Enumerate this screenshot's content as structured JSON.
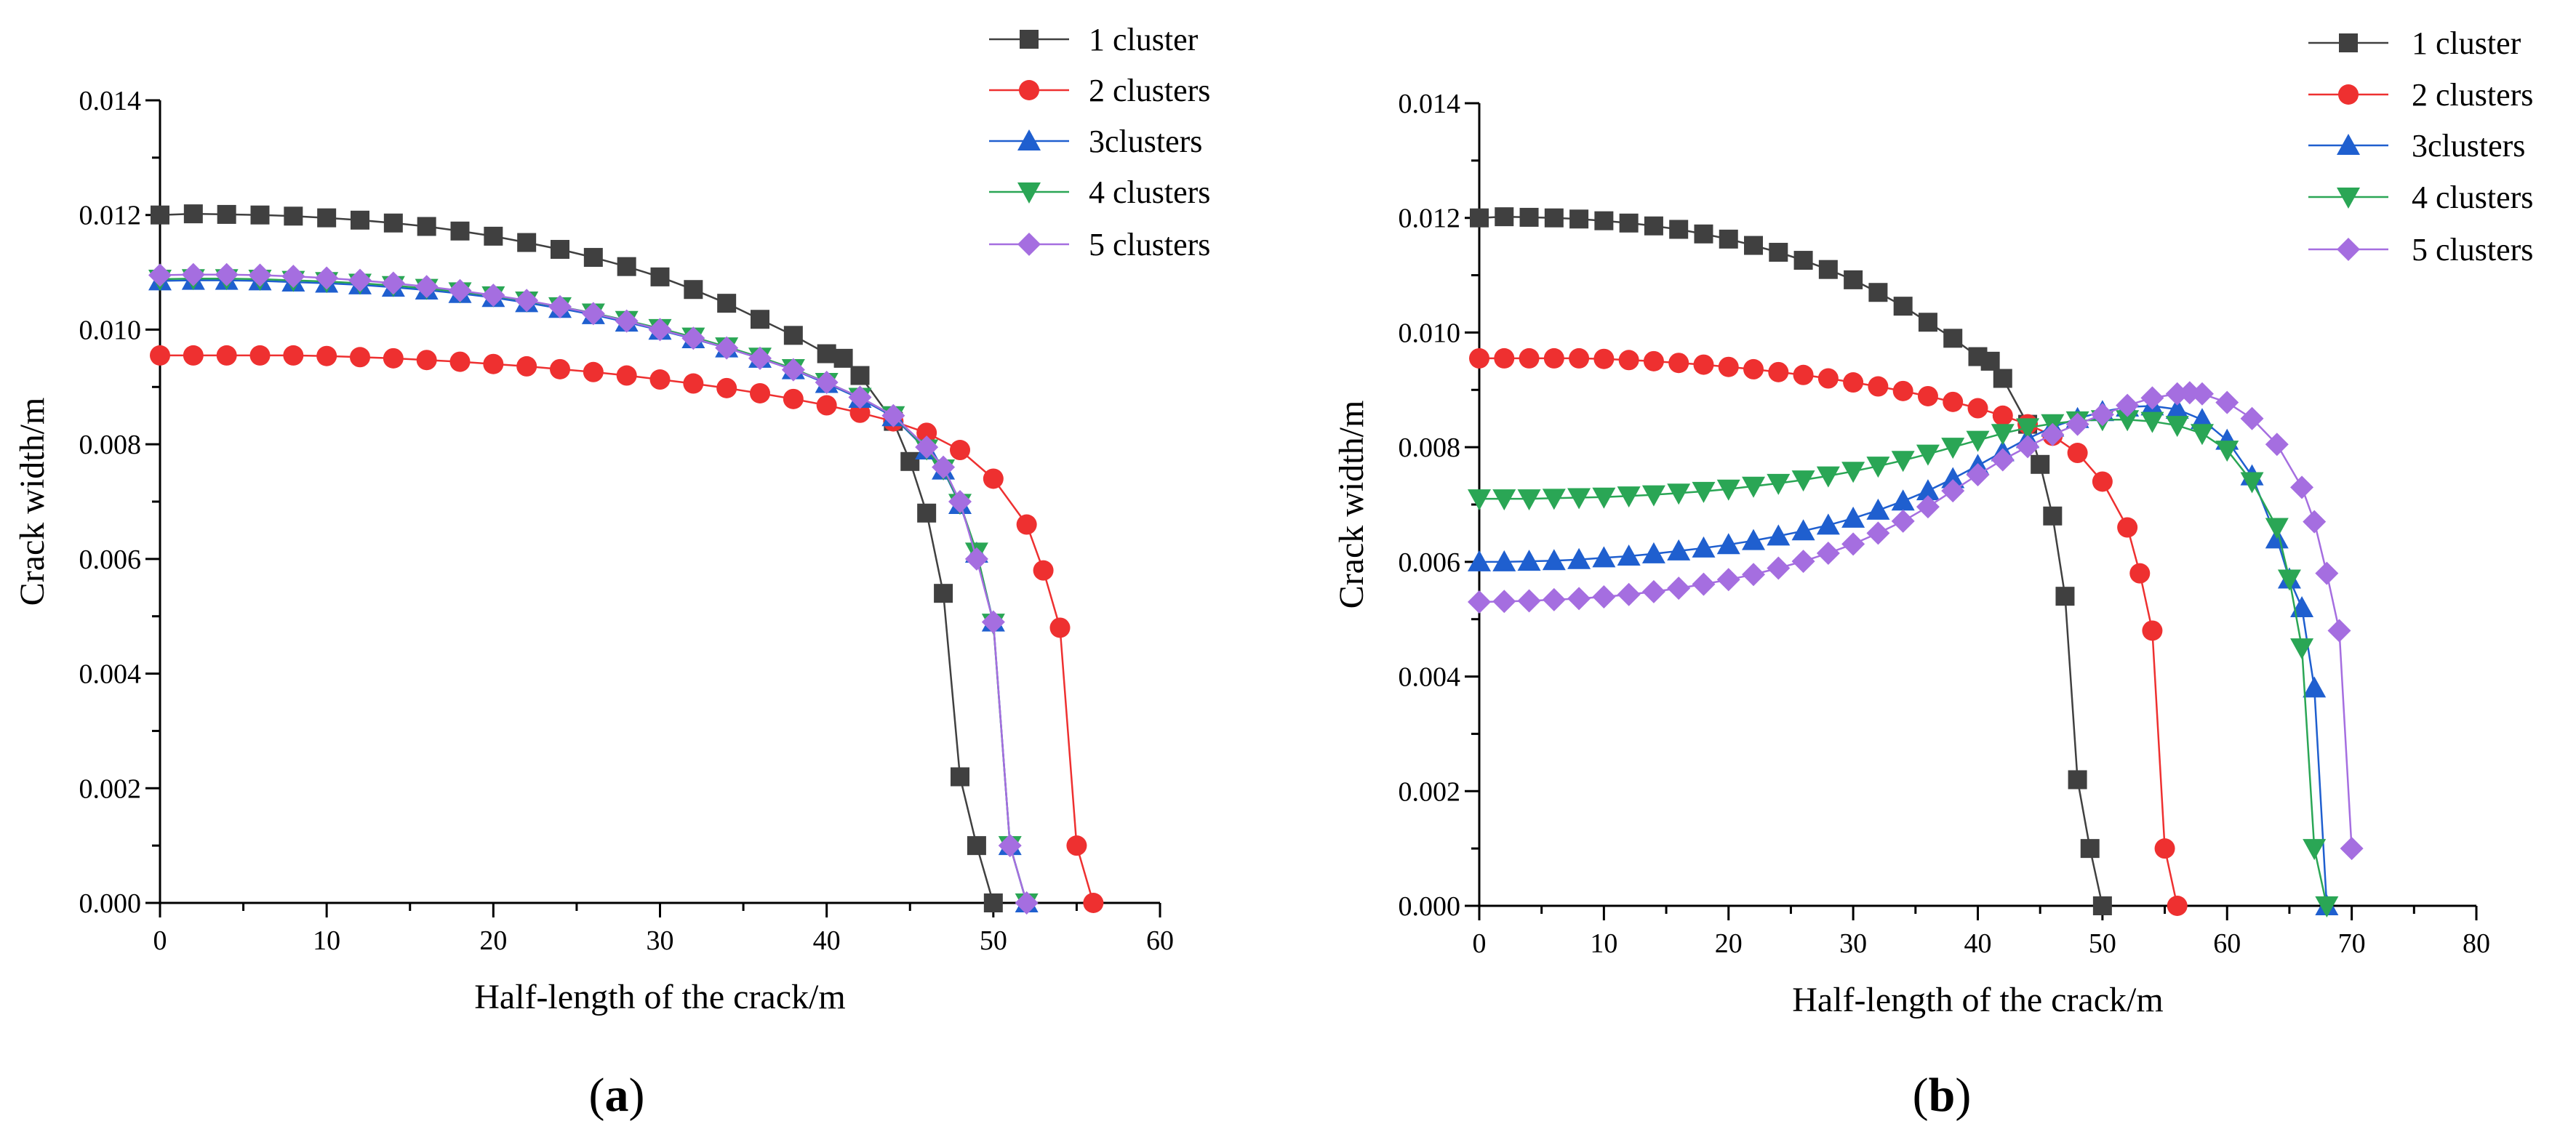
{
  "figure": {
    "panels": [
      {
        "label_open": "(",
        "label_letter": "a",
        "label_close": ")",
        "chart": {
          "type": "line",
          "title": "",
          "xlabel": "Half-length of the crack/m",
          "ylabel": "Crack width/m",
          "xlim": [
            0,
            60
          ],
          "ylim": [
            0,
            0.014
          ],
          "xticks": [
            0,
            10,
            20,
            30,
            40,
            50,
            60
          ],
          "yticks": [
            0.0,
            0.002,
            0.004,
            0.006,
            0.008,
            0.01,
            0.012,
            0.014
          ],
          "xtick_labels": [
            "0",
            "10",
            "20",
            "30",
            "40",
            "50",
            "60"
          ],
          "ytick_labels": [
            "0.000",
            "0.002",
            "0.004",
            "0.006",
            "0.008",
            "0.010",
            "0.012",
            "0.014"
          ],
          "grid": false,
          "legend_position": "top-right",
          "series": [
            {
              "name": "1 cluster",
              "color": "#404040",
              "marker": "square",
              "x": [
                0,
                2,
                4,
                6,
                8,
                10,
                12,
                14,
                16,
                18,
                20,
                22,
                24,
                26,
                28,
                30,
                32,
                34,
                36,
                38,
                40,
                41,
                42,
                44,
                45,
                46,
                47,
                48,
                49,
                50
              ],
              "y": [
                0.012,
                0.01202,
                0.01201,
                0.012,
                0.01198,
                0.01195,
                0.01191,
                0.01186,
                0.0118,
                0.01172,
                0.01163,
                0.01152,
                0.0114,
                0.01126,
                0.0111,
                0.01092,
                0.0107,
                0.01046,
                0.01018,
                0.0099,
                0.00958,
                0.0095,
                0.0092,
                0.0084,
                0.0077,
                0.0068,
                0.0054,
                0.0022,
                0.001,
                0.0
              ]
            },
            {
              "name": "2 clusters",
              "color": "#ee3030",
              "marker": "circle",
              "x": [
                0,
                2,
                4,
                6,
                8,
                10,
                12,
                14,
                16,
                18,
                20,
                22,
                24,
                26,
                28,
                30,
                32,
                34,
                36,
                38,
                40,
                42,
                44,
                46,
                48,
                50,
                52,
                53,
                54,
                55,
                56
              ],
              "y": [
                0.00955,
                0.00955,
                0.00955,
                0.00955,
                0.00955,
                0.00954,
                0.00952,
                0.0095,
                0.00947,
                0.00944,
                0.0094,
                0.00936,
                0.00931,
                0.00926,
                0.0092,
                0.00913,
                0.00906,
                0.00898,
                0.00889,
                0.00879,
                0.00868,
                0.00855,
                0.0084,
                0.0082,
                0.0079,
                0.0074,
                0.0066,
                0.0058,
                0.0048,
                0.001,
                0.0
              ]
            },
            {
              "name": "3clusters",
              "color": "#1f5fcf",
              "marker": "triangle-up",
              "x": [
                0,
                2,
                4,
                6,
                8,
                10,
                12,
                14,
                16,
                18,
                20,
                22,
                24,
                26,
                28,
                30,
                32,
                34,
                36,
                38,
                40,
                42,
                44,
                46,
                47,
                48,
                49,
                50,
                51,
                52
              ],
              "y": [
                0.01085,
                0.01086,
                0.01086,
                0.01085,
                0.01083,
                0.01081,
                0.01078,
                0.01074,
                0.01069,
                0.01063,
                0.01056,
                0.01047,
                0.01037,
                0.01026,
                0.01013,
                0.00999,
                0.00984,
                0.00968,
                0.0095,
                0.0093,
                0.00906,
                0.0088,
                0.00848,
                0.0079,
                0.00755,
                0.00695,
                0.0061,
                0.0049,
                0.001,
                0.0
              ]
            },
            {
              "name": "4 clusters",
              "color": "#2aa655",
              "marker": "triangle-down",
              "x": [
                0,
                2,
                4,
                6,
                8,
                10,
                12,
                14,
                16,
                18,
                20,
                22,
                24,
                26,
                28,
                30,
                32,
                34,
                36,
                38,
                40,
                42,
                44,
                46,
                47,
                48,
                49,
                50,
                51,
                52
              ],
              "y": [
                0.01088,
                0.01089,
                0.01089,
                0.01088,
                0.01086,
                0.01084,
                0.01081,
                0.01077,
                0.01072,
                0.01066,
                0.01059,
                0.0105,
                0.0104,
                0.01029,
                0.01016,
                0.01002,
                0.00987,
                0.0097,
                0.00952,
                0.00932,
                0.00908,
                0.00882,
                0.0085,
                0.00792,
                0.00757,
                0.00697,
                0.00612,
                0.00488,
                0.001,
                0.0
              ]
            },
            {
              "name": "5 clusters",
              "color": "#a56ee0",
              "marker": "diamond",
              "x": [
                0,
                2,
                4,
                6,
                8,
                10,
                12,
                14,
                16,
                18,
                20,
                22,
                24,
                26,
                28,
                30,
                32,
                34,
                36,
                38,
                40,
                42,
                44,
                46,
                47,
                48,
                49,
                50,
                51,
                52
              ],
              "y": [
                0.01095,
                0.01096,
                0.01096,
                0.01095,
                0.01093,
                0.0109,
                0.01086,
                0.01081,
                0.01075,
                0.01068,
                0.0106,
                0.01051,
                0.0104,
                0.01028,
                0.01015,
                0.01,
                0.00985,
                0.00968,
                0.0095,
                0.0093,
                0.00908,
                0.00882,
                0.0085,
                0.00795,
                0.0076,
                0.007,
                0.006,
                0.0049,
                0.001,
                0.0
              ]
            }
          ]
        }
      },
      {
        "label_open": "(",
        "label_letter": "b",
        "label_close": ")",
        "chart": {
          "type": "line",
          "title": "",
          "xlabel": "Half-length of the crack/m",
          "ylabel": "Crack width/m",
          "xlim": [
            0,
            80
          ],
          "ylim": [
            0,
            0.014
          ],
          "xticks": [
            0,
            10,
            20,
            30,
            40,
            50,
            60,
            70,
            80
          ],
          "yticks": [
            0.0,
            0.002,
            0.004,
            0.006,
            0.008,
            0.01,
            0.012,
            0.014
          ],
          "xtick_labels": [
            "0",
            "10",
            "20",
            "30",
            "40",
            "50",
            "60",
            "70",
            "80"
          ],
          "ytick_labels": [
            "0.000",
            "0.002",
            "0.004",
            "0.006",
            "0.008",
            "0.010",
            "0.012",
            "0.014"
          ],
          "grid": false,
          "legend_position": "top-right",
          "series": [
            {
              "name": "1 cluster",
              "color": "#404040",
              "marker": "square",
              "x": [
                0,
                2,
                4,
                6,
                8,
                10,
                12,
                14,
                16,
                18,
                20,
                22,
                24,
                26,
                28,
                30,
                32,
                34,
                36,
                38,
                40,
                41,
                42,
                44,
                45,
                46,
                47,
                48,
                49,
                50
              ],
              "y": [
                0.012,
                0.01202,
                0.01201,
                0.012,
                0.01198,
                0.01195,
                0.01191,
                0.01186,
                0.0118,
                0.01172,
                0.01163,
                0.01152,
                0.0114,
                0.01126,
                0.0111,
                0.01092,
                0.0107,
                0.01046,
                0.01018,
                0.0099,
                0.00958,
                0.0095,
                0.0092,
                0.0084,
                0.0077,
                0.0068,
                0.0054,
                0.0022,
                0.001,
                0.0
              ]
            },
            {
              "name": "2 clusters",
              "color": "#ee3030",
              "marker": "circle",
              "x": [
                0,
                2,
                4,
                6,
                8,
                10,
                12,
                14,
                16,
                18,
                20,
                22,
                24,
                26,
                28,
                30,
                32,
                34,
                36,
                38,
                40,
                42,
                44,
                46,
                48,
                50,
                52,
                53,
                54,
                55,
                56
              ],
              "y": [
                0.00955,
                0.00955,
                0.00955,
                0.00955,
                0.00955,
                0.00954,
                0.00952,
                0.0095,
                0.00947,
                0.00944,
                0.0094,
                0.00936,
                0.00931,
                0.00926,
                0.0092,
                0.00913,
                0.00906,
                0.00898,
                0.00889,
                0.00879,
                0.00868,
                0.00855,
                0.0084,
                0.0082,
                0.0079,
                0.0074,
                0.0066,
                0.0058,
                0.0048,
                0.001,
                0.0
              ]
            },
            {
              "name": "3clusters",
              "color": "#1f5fcf",
              "marker": "triangle-up",
              "x": [
                0,
                2,
                4,
                6,
                8,
                10,
                12,
                14,
                16,
                18,
                20,
                22,
                24,
                26,
                28,
                30,
                32,
                34,
                36,
                38,
                40,
                42,
                44,
                46,
                48,
                50,
                52,
                54,
                56,
                58,
                60,
                62,
                64,
                65,
                66,
                67,
                68
              ],
              "y": [
                0.006,
                0.006,
                0.00601,
                0.00602,
                0.00604,
                0.00607,
                0.0061,
                0.00614,
                0.00619,
                0.00624,
                0.0063,
                0.00637,
                0.00645,
                0.00654,
                0.00664,
                0.00676,
                0.0069,
                0.00706,
                0.00724,
                0.00745,
                0.00768,
                0.00792,
                0.00815,
                0.00835,
                0.0085,
                0.00862,
                0.0087,
                0.00872,
                0.00866,
                0.00848,
                0.00812,
                0.0075,
                0.0064,
                0.0057,
                0.0052,
                0.0038,
                0.0
              ]
            },
            {
              "name": "4 clusters",
              "color": "#2aa655",
              "marker": "triangle-down",
              "x": [
                0,
                2,
                4,
                6,
                8,
                10,
                12,
                14,
                16,
                18,
                20,
                22,
                24,
                26,
                28,
                30,
                32,
                34,
                36,
                38,
                40,
                42,
                44,
                46,
                48,
                50,
                52,
                54,
                56,
                58,
                60,
                62,
                64,
                65,
                66,
                67,
                68
              ],
              "y": [
                0.0071,
                0.0071,
                0.0071,
                0.00711,
                0.00712,
                0.00713,
                0.00715,
                0.00717,
                0.0072,
                0.00723,
                0.00727,
                0.00732,
                0.00737,
                0.00743,
                0.0075,
                0.00758,
                0.00767,
                0.00777,
                0.00788,
                0.008,
                0.00812,
                0.00824,
                0.00834,
                0.00841,
                0.00846,
                0.00848,
                0.00848,
                0.00845,
                0.00838,
                0.00824,
                0.00795,
                0.0074,
                0.0066,
                0.0057,
                0.0045,
                0.001,
                0.0
              ]
            },
            {
              "name": "5 clusters",
              "color": "#a56ee0",
              "marker": "diamond",
              "x": [
                0,
                2,
                4,
                6,
                8,
                10,
                12,
                14,
                16,
                18,
                20,
                22,
                24,
                26,
                28,
                30,
                32,
                34,
                36,
                38,
                40,
                42,
                44,
                46,
                48,
                50,
                52,
                54,
                56,
                57,
                58,
                60,
                62,
                64,
                66,
                67,
                68,
                69,
                70
              ],
              "y": [
                0.0053,
                0.00531,
                0.00532,
                0.00534,
                0.00536,
                0.00539,
                0.00543,
                0.00548,
                0.00554,
                0.00561,
                0.00569,
                0.00578,
                0.00589,
                0.00601,
                0.00615,
                0.00631,
                0.0065,
                0.00671,
                0.00696,
                0.00724,
                0.00752,
                0.00778,
                0.00801,
                0.00822,
                0.0084,
                0.00857,
                0.00873,
                0.00886,
                0.00893,
                0.00895,
                0.00893,
                0.00878,
                0.0085,
                0.00805,
                0.0073,
                0.0067,
                0.0058,
                0.0048,
                0.001
              ]
            }
          ]
        }
      }
    ]
  }
}
